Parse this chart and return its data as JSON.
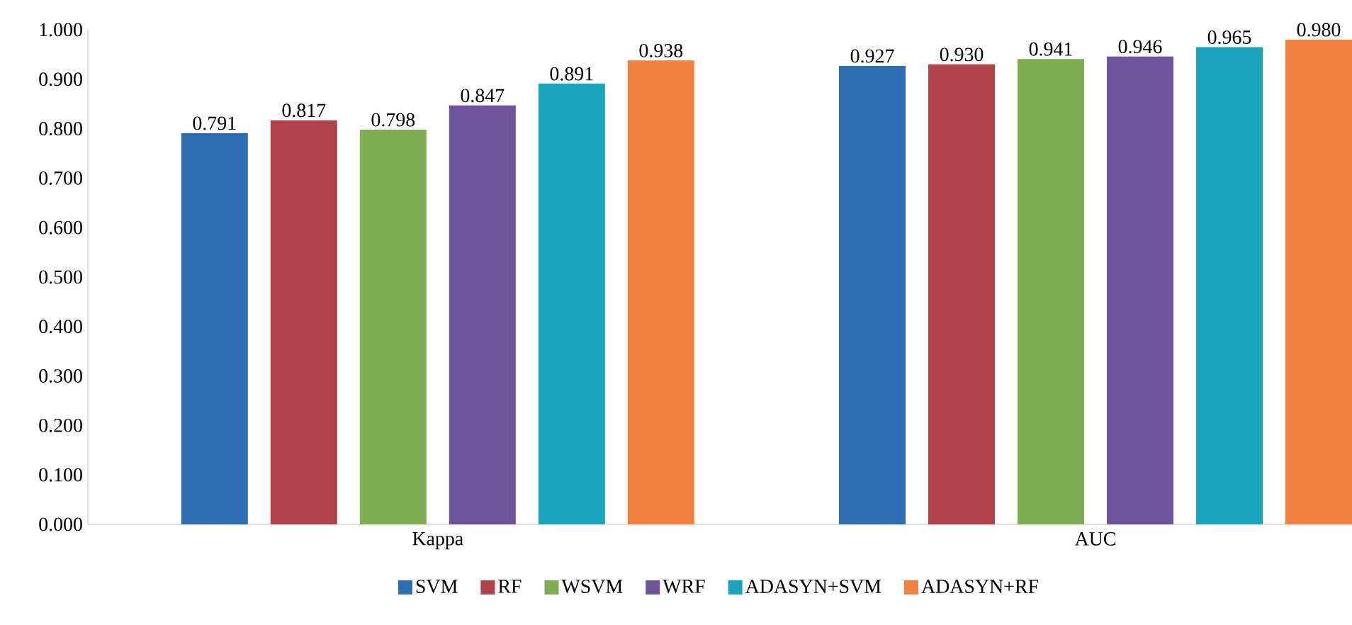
{
  "chart_data": {
    "type": "bar",
    "categories": [
      "Kappa",
      "AUC"
    ],
    "series": [
      {
        "name": "SVM",
        "color": "#2e6db0",
        "values": [
          0.791,
          0.927
        ],
        "value_labels": [
          "0.791",
          "0.927"
        ]
      },
      {
        "name": "RF",
        "color": "#b0434a",
        "values": [
          0.817,
          0.93
        ],
        "value_labels": [
          "0.817",
          "0.930"
        ]
      },
      {
        "name": "WSVM",
        "color": "#7ead53",
        "values": [
          0.798,
          0.941
        ],
        "value_labels": [
          "0.798",
          "0.941"
        ]
      },
      {
        "name": "WRF",
        "color": "#6b5499",
        "values": [
          0.847,
          0.946
        ],
        "value_labels": [
          "0.847",
          "0.946"
        ]
      },
      {
        "name": "ADASYN+SVM",
        "color": "#1ba3bd",
        "values": [
          0.891,
          0.965
        ],
        "value_labels": [
          "0.891",
          "0.965"
        ]
      },
      {
        "name": "ADASYN+RF",
        "color": "#f0813f",
        "values": [
          0.938,
          0.98
        ],
        "value_labels": [
          "0.938",
          "0.980"
        ]
      }
    ],
    "ylim": [
      0,
      1
    ],
    "yticks": [
      {
        "value": 0,
        "label": "0.000"
      },
      {
        "value": 0.1,
        "label": "0.100"
      },
      {
        "value": 0.2,
        "label": "0.200"
      },
      {
        "value": 0.3,
        "label": "0.300"
      },
      {
        "value": 0.4,
        "label": "0.400"
      },
      {
        "value": 0.5,
        "label": "0.500"
      },
      {
        "value": 0.6,
        "label": "0.600"
      },
      {
        "value": 0.7,
        "label": "0.700"
      },
      {
        "value": 0.8,
        "label": "0.800"
      },
      {
        "value": 0.9,
        "label": "0.900"
      },
      {
        "value": 1,
        "label": "1.000"
      }
    ],
    "grid": false,
    "legend": "bottom"
  }
}
